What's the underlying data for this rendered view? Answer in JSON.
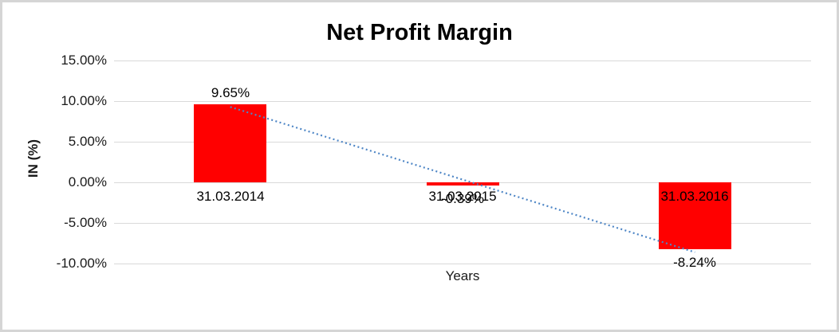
{
  "chart_data": {
    "type": "bar",
    "title": "Net Profit Margin",
    "xlabel": "Years",
    "ylabel": "IN (%)",
    "categories": [
      "31.03.2014",
      "31.03.2015",
      "31.03.2016"
    ],
    "values": [
      9.65,
      -0.39,
      -8.24
    ],
    "data_labels": [
      "9.65%",
      "-0.39%",
      "-8.24%"
    ],
    "ylim": [
      -10,
      15
    ],
    "yticks": [
      {
        "value": 15,
        "label": "15.00%"
      },
      {
        "value": 10,
        "label": "10.00%"
      },
      {
        "value": 5,
        "label": "5.00%"
      },
      {
        "value": 0,
        "label": "0.00%"
      },
      {
        "value": -5,
        "label": "-5.00%"
      },
      {
        "value": -10,
        "label": "-10.00%"
      }
    ],
    "grid": true,
    "legend": "none",
    "bar_color": "#FF0000",
    "gridline_color": "#D9D9D9",
    "trendline": {
      "type": "linear",
      "style": "dotted",
      "color": "#4E86C6"
    }
  },
  "frame": {
    "border_color": "#D5D5D5",
    "background": "#FFFFFF"
  }
}
